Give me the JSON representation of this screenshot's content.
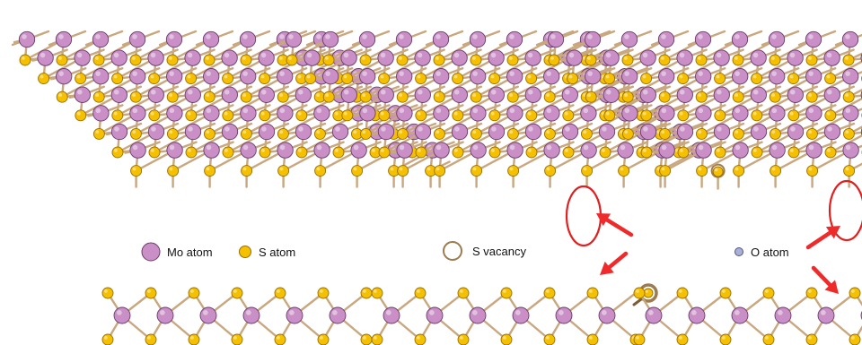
{
  "legend": {
    "mo_label": "Mo atom",
    "s_label": "S atom",
    "vacancy_label": "S vacancy",
    "o_label": "O atom"
  },
  "panels": [
    {
      "name": "pristine-mos2",
      "defect": "none"
    },
    {
      "name": "s-vacancy-mos2",
      "defect": "vacancy"
    },
    {
      "name": "o-substituted-mos2",
      "defect": "oxygen"
    }
  ],
  "colors": {
    "mo": "#c98fc6",
    "mo_stroke": "#6a3d6a",
    "s": "#f5c000",
    "s_stroke": "#9a6e00",
    "bond": "#c9a77f",
    "bond_dark": "#7b5d3a",
    "o": "#a9b0d8",
    "o_stroke": "#4f567d",
    "highlight": "#e02020",
    "arrow": "#ee2a2a",
    "vacancy_ring": "#9c7b4f"
  }
}
